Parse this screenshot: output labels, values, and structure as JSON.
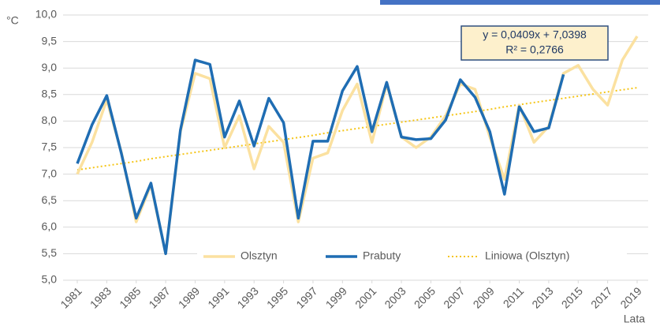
{
  "chart_data": {
    "type": "line",
    "ylabel": "°C",
    "xlabel": "Lata",
    "annotations": [
      "y = 0,0409x + 7,0398",
      "R² = 0,2766"
    ],
    "x": [
      1981,
      1982,
      1983,
      1984,
      1985,
      1986,
      1987,
      1988,
      1989,
      1990,
      1991,
      1992,
      1993,
      1994,
      1995,
      1996,
      1997,
      1998,
      1999,
      2000,
      2001,
      2002,
      2003,
      2004,
      2005,
      2006,
      2007,
      2008,
      2009,
      2010,
      2011,
      2012,
      2013,
      2014,
      2015,
      2016,
      2017,
      2018,
      2019
    ],
    "xlim": [
      1981,
      2019
    ],
    "xticks": [
      1981,
      1983,
      1985,
      1987,
      1989,
      1991,
      1993,
      1995,
      1997,
      1999,
      2001,
      2003,
      2005,
      2007,
      2009,
      2011,
      2013,
      2015,
      2017,
      2019
    ],
    "ylim": [
      5,
      10
    ],
    "yticks": [
      {
        "value": 5,
        "label": "5,0"
      },
      {
        "value": 5.5,
        "label": "5,5"
      },
      {
        "value": 6,
        "label": "6,0"
      },
      {
        "value": 6.5,
        "label": "6,5"
      },
      {
        "value": 7,
        "label": "7,0"
      },
      {
        "value": 7.5,
        "label": "7,5"
      },
      {
        "value": 8,
        "label": "8,0"
      },
      {
        "value": 8.5,
        "label": "8,5"
      },
      {
        "value": 9,
        "label": "9,0"
      },
      {
        "value": 9.5,
        "label": "9,5"
      },
      {
        "value": 10,
        "label": "10,0"
      }
    ],
    "grid": true,
    "legend": "bottom",
    "series": [
      {
        "name": "Olsztyn",
        "color": "#fbe1a0",
        "style": "solid",
        "values": [
          7.0,
          7.6,
          8.4,
          7.4,
          6.1,
          6.8,
          5.5,
          7.8,
          8.9,
          8.8,
          7.5,
          8.1,
          7.1,
          7.9,
          7.6,
          6.1,
          7.3,
          7.4,
          8.2,
          8.7,
          7.6,
          8.7,
          7.7,
          7.5,
          7.7,
          8.1,
          8.7,
          8.6,
          7.7,
          6.9,
          8.3,
          7.6,
          7.9,
          8.9,
          9.05,
          8.6,
          8.3,
          9.15,
          9.6
        ]
      },
      {
        "name": "Prabuty",
        "color": "#1f6db3",
        "style": "solid",
        "values": [
          7.2,
          7.93,
          8.48,
          7.38,
          6.17,
          6.83,
          5.5,
          7.83,
          9.15,
          9.07,
          7.7,
          8.38,
          7.53,
          8.43,
          7.97,
          6.17,
          7.62,
          7.62,
          8.57,
          9.03,
          7.8,
          8.73,
          7.7,
          7.65,
          7.67,
          8.02,
          8.78,
          8.45,
          7.8,
          6.62,
          8.27,
          7.8,
          7.87,
          8.88,
          null,
          null,
          null,
          null,
          null
        ]
      },
      {
        "name": "Liniowa (Olsztyn)",
        "color": "#f5c518",
        "style": "dotted",
        "values": [
          7.08,
          7.12,
          7.16,
          7.2,
          7.24,
          7.29,
          7.33,
          7.37,
          7.41,
          7.45,
          7.49,
          7.53,
          7.57,
          7.61,
          7.65,
          7.69,
          7.73,
          7.78,
          7.82,
          7.86,
          7.9,
          7.94,
          7.98,
          8.02,
          8.06,
          8.1,
          8.14,
          8.18,
          8.22,
          8.27,
          8.31,
          8.35,
          8.39,
          8.43,
          8.47,
          8.51,
          8.55,
          8.59,
          8.63
        ]
      }
    ]
  }
}
